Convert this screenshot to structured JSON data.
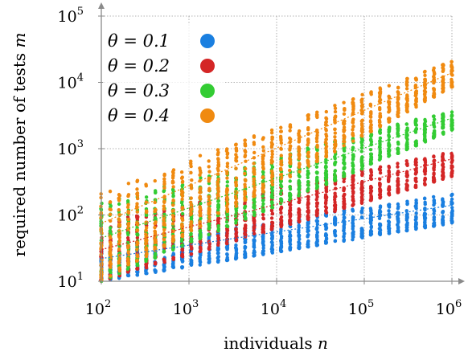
{
  "chart_data": {
    "type": "scatter",
    "xlabel": "individuals n",
    "ylabel": "required number of tests m",
    "x_scale": "log",
    "y_scale": "log",
    "xlim": [
      100,
      1000000
    ],
    "ylim": [
      10,
      100000
    ],
    "grid": true,
    "legend_position": "top-left",
    "x_ticks": [
      {
        "base": "10",
        "exp": "2"
      },
      {
        "base": "10",
        "exp": "3"
      },
      {
        "base": "10",
        "exp": "4"
      },
      {
        "base": "10",
        "exp": "5"
      },
      {
        "base": "10",
        "exp": "6"
      }
    ],
    "y_ticks": [
      {
        "base": "10",
        "exp": "1"
      },
      {
        "base": "10",
        "exp": "2"
      },
      {
        "base": "10",
        "exp": "3"
      },
      {
        "base": "10",
        "exp": "4"
      },
      {
        "base": "10",
        "exp": "5"
      }
    ],
    "series": [
      {
        "name": "θ = 0.1",
        "color": "#1a7fe0",
        "theta": 0.1,
        "fit_y_at_xmin": 22,
        "fit_y_at_xmax": 140,
        "spread_low_at_xmin": 10,
        "spread_low_at_xmax": 75,
        "spread_high_at_xmin": 32,
        "spread_high_at_xmax": 210
      },
      {
        "name": "θ = 0.2",
        "color": "#d42626",
        "theta": 0.2,
        "fit_y_at_xmin": 30,
        "fit_y_at_xmax": 700,
        "spread_low_at_xmin": 10,
        "spread_low_at_xmax": 380,
        "spread_high_at_xmin": 80,
        "spread_high_at_xmax": 900
      },
      {
        "name": "θ = 0.3",
        "color": "#33cc33",
        "theta": 0.3,
        "fit_y_at_xmin": 45,
        "fit_y_at_xmax": 2900,
        "spread_low_at_xmin": 10,
        "spread_low_at_xmax": 1900,
        "spread_high_at_xmin": 150,
        "spread_high_at_xmax": 3900
      },
      {
        "name": "θ = 0.4",
        "color": "#f08a10",
        "theta": 0.4,
        "fit_y_at_xmin": 75,
        "fit_y_at_xmax": 14000,
        "spread_low_at_xmin": 10,
        "spread_low_at_xmax": 8500,
        "spread_high_at_xmin": 220,
        "spread_high_at_xmax": 21000
      }
    ]
  },
  "legend": [
    {
      "label": "θ = 0.1",
      "color": "#1a7fe0"
    },
    {
      "label": "θ = 0.2",
      "color": "#d42626"
    },
    {
      "label": "θ = 0.3",
      "color": "#33cc33"
    },
    {
      "label": "θ = 0.4",
      "color": "#f08a10"
    }
  ]
}
